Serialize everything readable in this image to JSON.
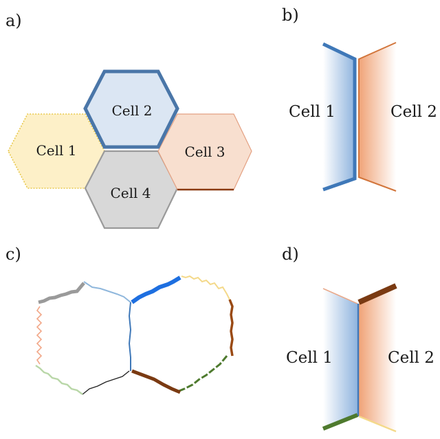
{
  "panels": {
    "a": {
      "label": "a)",
      "cells": [
        {
          "name": "Cell 1",
          "fill": "#fdf0c8",
          "stroke": "#e8c84a",
          "style": "dotted"
        },
        {
          "name": "Cell 2",
          "fill": "#dbe6f3",
          "stroke": "#4a76a8",
          "style": "thick"
        },
        {
          "name": "Cell 3",
          "fill": "#f8dfcf",
          "stroke": "#a0451d",
          "style": "partial"
        },
        {
          "name": "Cell 4",
          "fill": "#d8d8d8",
          "stroke": "#9a9a9a",
          "style": "solid"
        }
      ]
    },
    "b": {
      "label": "b)",
      "left_cell": "Cell 1",
      "right_cell": "Cell 2",
      "left_color": "#3f78b8",
      "right_color": "#d2753b"
    },
    "c": {
      "label": "c)",
      "colors": {
        "gray": "#9a9a9a",
        "light_blue": "#8fb7dc",
        "bright_blue": "#1e6fe0",
        "yellow": "#f4d98a",
        "brown": "#9a4a14",
        "green": "#4e7a2e",
        "black": "#222222",
        "light_green": "#b9d7a8",
        "salmon": "#f2a889",
        "steel_blue": "#3f78b8"
      }
    },
    "d": {
      "label": "d)",
      "left_cell": "Cell 1",
      "right_cell": "Cell 2",
      "colors": {
        "dark_brown": "#7a3a12",
        "green": "#4e7a2e",
        "yellow": "#f4d98a",
        "salmon": "#e9a98a",
        "blue": "#3f78b8"
      }
    }
  }
}
